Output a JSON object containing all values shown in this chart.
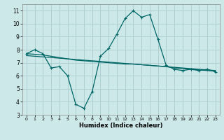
{
  "title": "",
  "xlabel": "Humidex (Indice chaleur)",
  "ylabel": "",
  "background_color": "#cce8e8",
  "line_color": "#006666",
  "grid_color": "#aacccc",
  "xlim": [
    -0.5,
    23.5
  ],
  "ylim": [
    3,
    11.5
  ],
  "yticks": [
    3,
    4,
    5,
    6,
    7,
    8,
    9,
    10,
    11
  ],
  "xticks": [
    0,
    1,
    2,
    3,
    4,
    5,
    6,
    7,
    8,
    9,
    10,
    11,
    12,
    13,
    14,
    15,
    16,
    17,
    18,
    19,
    20,
    21,
    22,
    23
  ],
  "line1_x": [
    0,
    1,
    2,
    3,
    4,
    5,
    6,
    7,
    8,
    9,
    10,
    11,
    12,
    13,
    14,
    15,
    16,
    17,
    18,
    19,
    20,
    21,
    22,
    23
  ],
  "line1_y": [
    7.7,
    8.0,
    7.7,
    6.6,
    6.7,
    6.0,
    3.8,
    3.5,
    4.8,
    7.5,
    8.1,
    9.2,
    10.4,
    11.0,
    10.5,
    10.7,
    8.8,
    6.8,
    6.5,
    6.4,
    6.5,
    6.4,
    6.5,
    6.3
  ],
  "line2_x": [
    0,
    1,
    2,
    3,
    4,
    5,
    6,
    7,
    8,
    9,
    10,
    11,
    12,
    13,
    14,
    15,
    16,
    17,
    18,
    19,
    20,
    21,
    22,
    23
  ],
  "line2_y": [
    7.7,
    7.65,
    7.6,
    7.5,
    7.4,
    7.3,
    7.2,
    7.15,
    7.1,
    7.05,
    7.0,
    6.95,
    6.9,
    6.9,
    6.85,
    6.8,
    6.75,
    6.7,
    6.6,
    6.55,
    6.5,
    6.45,
    6.4,
    6.35
  ],
  "line3_x": [
    0,
    1,
    2,
    3,
    4,
    5,
    6,
    7,
    8,
    9,
    10,
    11,
    12,
    13,
    14,
    15,
    16,
    17,
    18,
    19,
    20,
    21,
    22,
    23
  ],
  "line3_y": [
    7.55,
    7.5,
    7.45,
    7.4,
    7.35,
    7.3,
    7.25,
    7.2,
    7.15,
    7.1,
    7.05,
    7.0,
    6.95,
    6.9,
    6.85,
    6.8,
    6.75,
    6.7,
    6.65,
    6.6,
    6.55,
    6.5,
    6.45,
    6.4
  ]
}
